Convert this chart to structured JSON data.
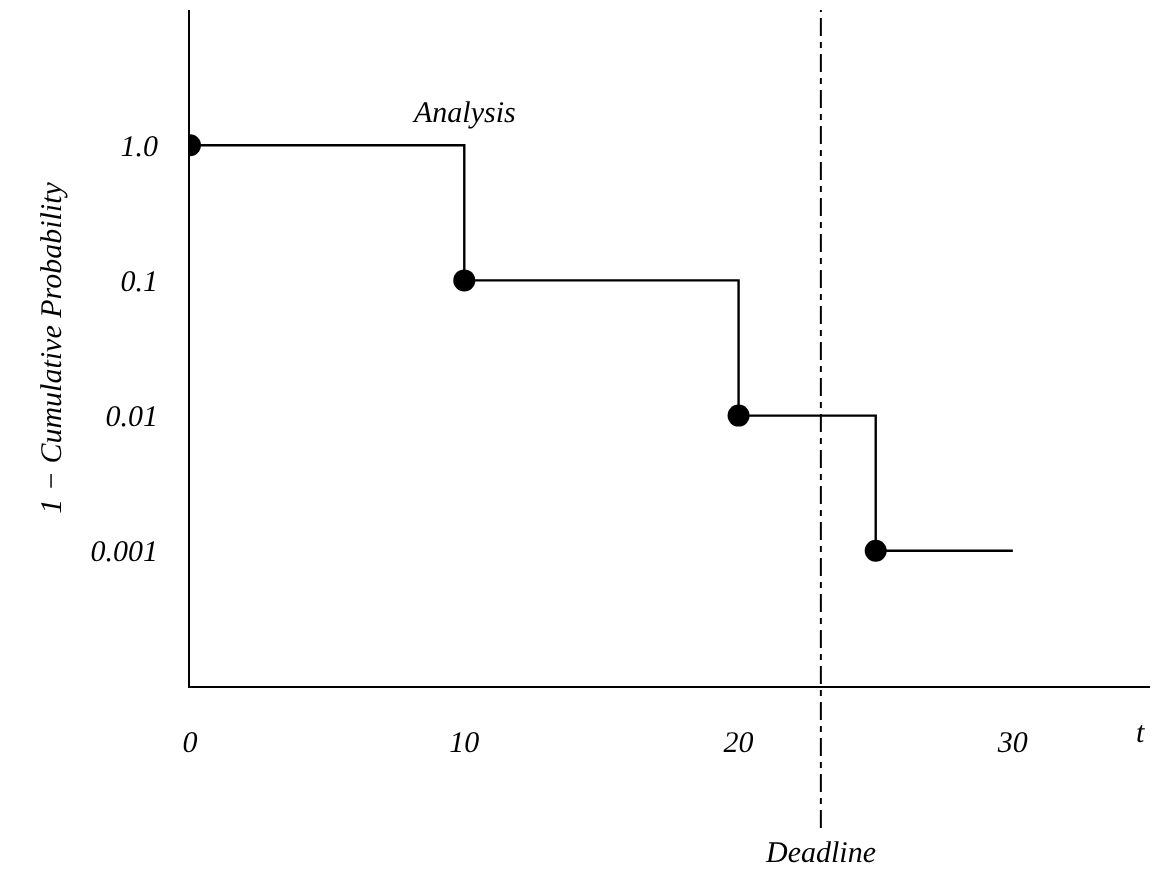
{
  "chart_data": {
    "type": "step",
    "xlabel": "t",
    "ylabel": "1 − Cumulative Probability",
    "log": "y",
    "grid": false,
    "xlim": [
      0,
      35
    ],
    "xticks": [
      0,
      10,
      20,
      30
    ],
    "ylim": [
      0.0001,
      10
    ],
    "yticks": [
      {
        "value": 1,
        "label": "1.0"
      },
      0.1,
      0.01,
      0.001
    ],
    "series": [
      {
        "color": "#000000",
        "marker": "none",
        "x": [
          0,
          10,
          20,
          25,
          30
        ],
        "values": [
          1,
          0.1,
          0.01,
          0.001,
          0.001
        ]
      },
      {
        "type": "scatter",
        "color": "#000000",
        "marker": "circle",
        "x": [
          0,
          10,
          20,
          25
        ],
        "values": [
          1,
          0.1,
          0.01,
          0.001
        ]
      }
    ],
    "annotations": [
      {
        "text": "Analysis",
        "x": 10,
        "y": 1
      }
    ],
    "ref_lines": [
      {
        "axis": "x",
        "value": 23,
        "label": "Deadline",
        "line_style": "dashdot",
        "color": "#000000"
      }
    ]
  }
}
